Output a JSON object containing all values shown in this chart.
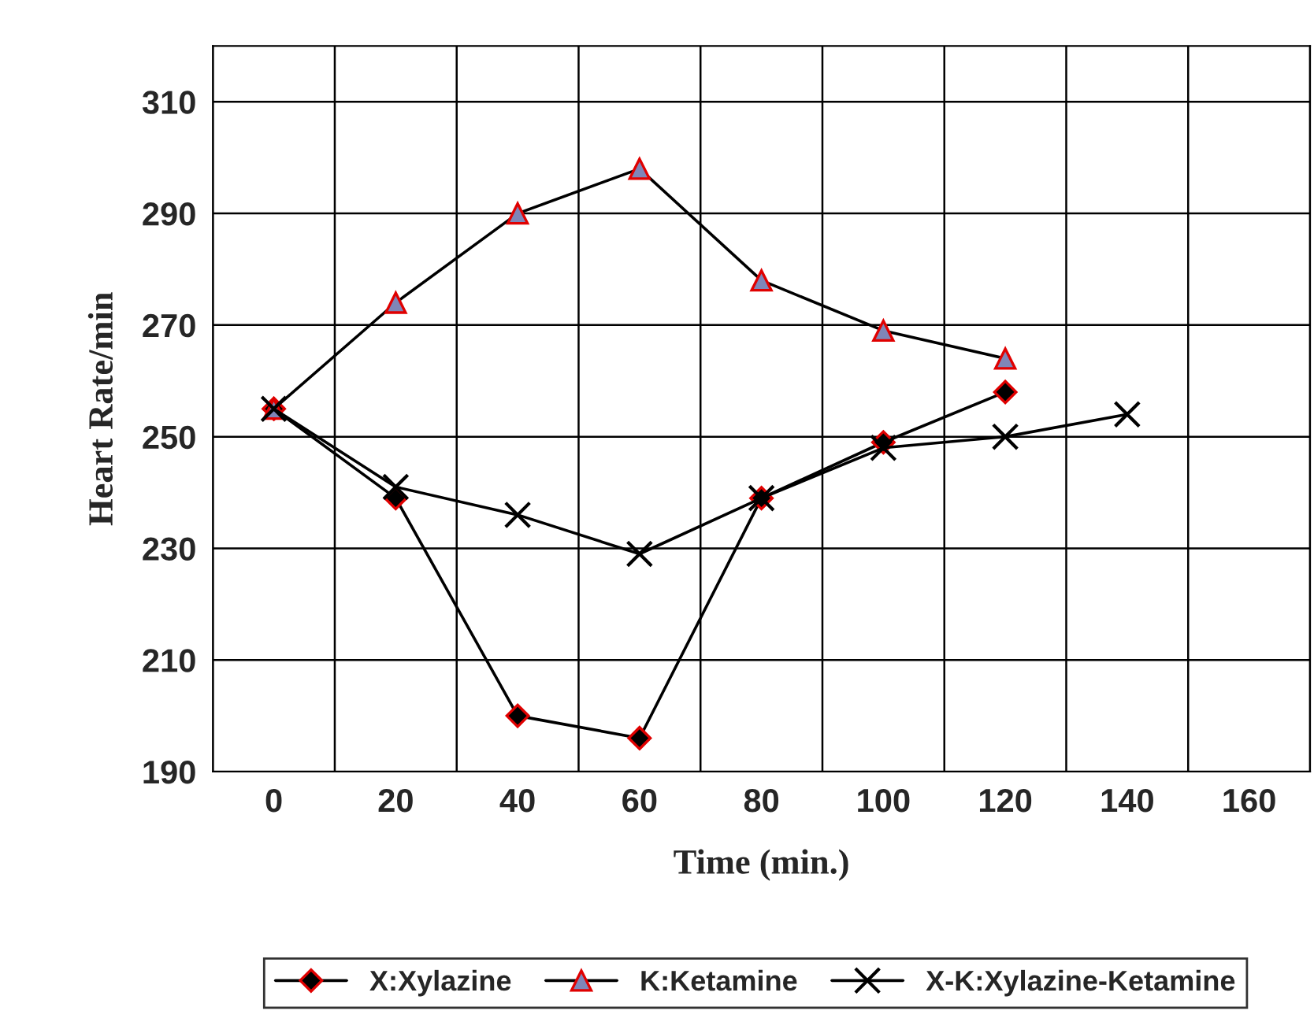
{
  "chart_data": {
    "type": "line",
    "xlabel": "Time (min.)",
    "ylabel": "Heart Rate/min",
    "categories": [
      "0",
      "20",
      "40",
      "60",
      "80",
      "100",
      "120",
      "140",
      "160"
    ],
    "series": [
      {
        "name": "X:Xylazine",
        "color": "#000000",
        "marker": "diamond",
        "values": [
          255,
          239,
          200,
          196,
          239,
          249,
          258,
          null,
          null
        ]
      },
      {
        "name": "K:Ketamine",
        "color": "#7f86b8",
        "marker": "triangle",
        "values": [
          255,
          274,
          290,
          298,
          278,
          269,
          264,
          null,
          null
        ]
      },
      {
        "name": "X-K:Xylazine-Ketamine",
        "color": "#000000",
        "marker": "cross",
        "values": [
          255,
          241,
          236,
          229,
          239,
          248,
          250,
          254,
          null
        ]
      }
    ],
    "ylim": [
      190,
      320
    ],
    "yticks": [
      190,
      210,
      230,
      250,
      270,
      290,
      310
    ],
    "grid": true,
    "legend": "bottom",
    "line_style": "solid"
  }
}
